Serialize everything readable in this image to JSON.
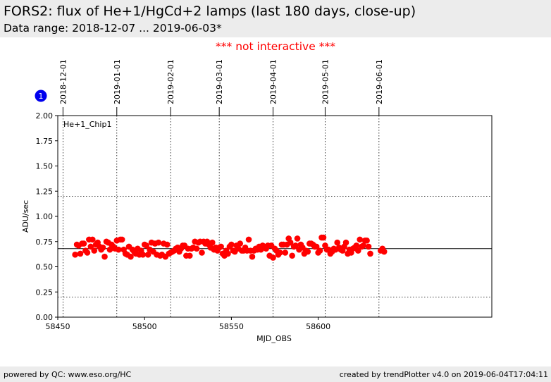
{
  "header": {
    "title": "FORS2: flux of He+1/HgCd+2 lamps (last 180 days, close-up)",
    "subtitle": "Data range: 2018-12-07 ... 2019-06-03*"
  },
  "notice": "*** not interactive ***",
  "footer": {
    "left": "powered by QC: www.eso.org/HC",
    "right": "created by trendPlotter v4.0 on 2019-06-04T17:04:11"
  },
  "badge": "1",
  "colors": {
    "points": "#ff0000",
    "notice": "#ff0000",
    "header_bg": "#ececec"
  },
  "chart_data": {
    "type": "scatter",
    "panel_label": "He+1_Chip1",
    "xlabel": "MJD_OBS",
    "ylabel": "ADU/sec",
    "xlim": [
      58450,
      58700
    ],
    "ylim": [
      0,
      2.0
    ],
    "x_ticks": [
      58450,
      58500,
      58550,
      58600
    ],
    "x_tick_labels": [
      "58450",
      "58500",
      "58550",
      "58600"
    ],
    "y_ticks": [
      0,
      0.25,
      0.5,
      0.75,
      1.0,
      1.25,
      1.5,
      1.75,
      2.0
    ],
    "y_tick_labels": [
      "0.00",
      "0.25",
      "0.50",
      "0.75",
      "1.00",
      "1.25",
      "1.50",
      "1.75",
      "2.00"
    ],
    "date_markers": [
      {
        "mjd": 58453,
        "label": "2018-12-01"
      },
      {
        "mjd": 58484,
        "label": "2019-01-01"
      },
      {
        "mjd": 58515,
        "label": "2019-02-01"
      },
      {
        "mjd": 58543,
        "label": "2019-03-01"
      },
      {
        "mjd": 58574,
        "label": "2019-04-01"
      },
      {
        "mjd": 58604,
        "label": "2019-05-01"
      },
      {
        "mjd": 58635,
        "label": "2019-06-01"
      }
    ],
    "reference_lines": {
      "median": 0.68,
      "upper": 1.2,
      "lower": 0.2
    },
    "series": [
      {
        "marker_color": "#ff0000",
        "points": [
          [
            58460,
            0.62
          ],
          [
            58461,
            0.72
          ],
          [
            58462,
            0.71
          ],
          [
            58463,
            0.63
          ],
          [
            58464,
            0.73
          ],
          [
            58465,
            0.73
          ],
          [
            58466,
            0.66
          ],
          [
            58467,
            0.64
          ],
          [
            58468,
            0.77
          ],
          [
            58469,
            0.7
          ],
          [
            58470,
            0.77
          ],
          [
            58471,
            0.66
          ],
          [
            58472,
            0.72
          ],
          [
            58473,
            0.74
          ],
          [
            58474,
            0.7
          ],
          [
            58475,
            0.67
          ],
          [
            58476,
            0.69
          ],
          [
            58477,
            0.6
          ],
          [
            58478,
            0.75
          ],
          [
            58479,
            0.74
          ],
          [
            58480,
            0.67
          ],
          [
            58481,
            0.72
          ],
          [
            58482,
            0.7
          ],
          [
            58483,
            0.68
          ],
          [
            58484,
            0.76
          ],
          [
            58485,
            0.67
          ],
          [
            58486,
            0.77
          ],
          [
            58487,
            0.77
          ],
          [
            58488,
            0.67
          ],
          [
            58489,
            0.63
          ],
          [
            58490,
            0.62
          ],
          [
            58491,
            0.7
          ],
          [
            58492,
            0.6
          ],
          [
            58493,
            0.67
          ],
          [
            58494,
            0.65
          ],
          [
            58495,
            0.63
          ],
          [
            58496,
            0.68
          ],
          [
            58497,
            0.62
          ],
          [
            58498,
            0.66
          ],
          [
            58499,
            0.62
          ],
          [
            58500,
            0.72
          ],
          [
            58501,
            0.71
          ],
          [
            58502,
            0.62
          ],
          [
            58503,
            0.67
          ],
          [
            58504,
            0.74
          ],
          [
            58505,
            0.65
          ],
          [
            58506,
            0.73
          ],
          [
            58507,
            0.62
          ],
          [
            58508,
            0.74
          ],
          [
            58509,
            0.61
          ],
          [
            58510,
            0.62
          ],
          [
            58511,
            0.73
          ],
          [
            58512,
            0.6
          ],
          [
            58513,
            0.72
          ],
          [
            58514,
            0.63
          ],
          [
            58515,
            0.64
          ],
          [
            58516,
            0.65
          ],
          [
            58517,
            0.66
          ],
          [
            58518,
            0.68
          ],
          [
            58519,
            0.69
          ],
          [
            58520,
            0.65
          ],
          [
            58521,
            0.68
          ],
          [
            58522,
            0.71
          ],
          [
            58523,
            0.71
          ],
          [
            58524,
            0.61
          ],
          [
            58525,
            0.68
          ],
          [
            58526,
            0.61
          ],
          [
            58527,
            0.68
          ],
          [
            58528,
            0.69
          ],
          [
            58529,
            0.75
          ],
          [
            58530,
            0.68
          ],
          [
            58531,
            0.74
          ],
          [
            58532,
            0.75
          ],
          [
            58533,
            0.64
          ],
          [
            58534,
            0.75
          ],
          [
            58535,
            0.73
          ],
          [
            58536,
            0.75
          ],
          [
            58537,
            0.72
          ],
          [
            58538,
            0.69
          ],
          [
            58539,
            0.74
          ],
          [
            58540,
            0.67
          ],
          [
            58541,
            0.69
          ],
          [
            58542,
            0.66
          ],
          [
            58543,
            0.69
          ],
          [
            58544,
            0.7
          ],
          [
            58545,
            0.63
          ],
          [
            58546,
            0.61
          ],
          [
            58547,
            0.66
          ],
          [
            58548,
            0.63
          ],
          [
            58549,
            0.7
          ],
          [
            58550,
            0.72
          ],
          [
            58551,
            0.66
          ],
          [
            58552,
            0.65
          ],
          [
            58553,
            0.71
          ],
          [
            58554,
            0.68
          ],
          [
            58555,
            0.73
          ],
          [
            58556,
            0.66
          ],
          [
            58557,
            0.66
          ],
          [
            58558,
            0.69
          ],
          [
            58559,
            0.66
          ],
          [
            58560,
            0.77
          ],
          [
            58561,
            0.66
          ],
          [
            58562,
            0.6
          ],
          [
            58563,
            0.66
          ],
          [
            58564,
            0.68
          ],
          [
            58565,
            0.67
          ],
          [
            58566,
            0.7
          ],
          [
            58567,
            0.67
          ],
          [
            58568,
            0.71
          ],
          [
            58569,
            0.7
          ],
          [
            58570,
            0.68
          ],
          [
            58571,
            0.71
          ],
          [
            58572,
            0.61
          ],
          [
            58573,
            0.71
          ],
          [
            58574,
            0.59
          ],
          [
            58575,
            0.68
          ],
          [
            58576,
            0.66
          ],
          [
            58577,
            0.62
          ],
          [
            58578,
            0.64
          ],
          [
            58579,
            0.72
          ],
          [
            58580,
            0.72
          ],
          [
            58581,
            0.64
          ],
          [
            58582,
            0.72
          ],
          [
            58583,
            0.78
          ],
          [
            58584,
            0.74
          ],
          [
            58585,
            0.61
          ],
          [
            58586,
            0.7
          ],
          [
            58587,
            0.71
          ],
          [
            58588,
            0.78
          ],
          [
            58589,
            0.67
          ],
          [
            58590,
            0.72
          ],
          [
            58591,
            0.69
          ],
          [
            58592,
            0.63
          ],
          [
            58593,
            0.66
          ],
          [
            58594,
            0.65
          ],
          [
            58595,
            0.73
          ],
          [
            58596,
            0.73
          ],
          [
            58597,
            0.72
          ],
          [
            58598,
            0.7
          ],
          [
            58599,
            0.7
          ],
          [
            58600,
            0.64
          ],
          [
            58601,
            0.66
          ],
          [
            58602,
            0.79
          ],
          [
            58603,
            0.79
          ],
          [
            58604,
            0.71
          ],
          [
            58605,
            0.67
          ],
          [
            58606,
            0.67
          ],
          [
            58607,
            0.63
          ],
          [
            58608,
            0.65
          ],
          [
            58609,
            0.68
          ],
          [
            58610,
            0.67
          ],
          [
            58611,
            0.74
          ],
          [
            58612,
            0.69
          ],
          [
            58613,
            0.67
          ],
          [
            58614,
            0.66
          ],
          [
            58615,
            0.7
          ],
          [
            58616,
            0.74
          ],
          [
            58617,
            0.63
          ],
          [
            58618,
            0.67
          ],
          [
            58619,
            0.64
          ],
          [
            58620,
            0.68
          ],
          [
            58621,
            0.69
          ],
          [
            58622,
            0.71
          ],
          [
            58623,
            0.66
          ],
          [
            58624,
            0.77
          ],
          [
            58625,
            0.7
          ],
          [
            58626,
            0.71
          ],
          [
            58627,
            0.76
          ],
          [
            58628,
            0.76
          ],
          [
            58629,
            0.7
          ],
          [
            58630,
            0.63
          ],
          [
            58636,
            0.66
          ],
          [
            58637,
            0.68
          ],
          [
            58638,
            0.65
          ]
        ]
      }
    ]
  }
}
